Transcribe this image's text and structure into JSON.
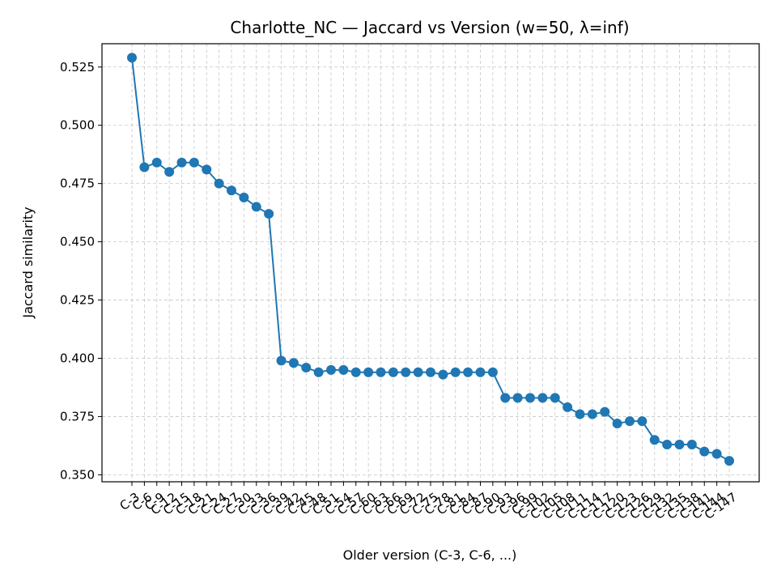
{
  "chart_data": {
    "type": "line",
    "title": "Charlotte_NC — Jaccard vs Version (w=50, λ=inf)",
    "xlabel": "Older version (C-3, C-6, ...)",
    "ylabel": "Jaccard similarity",
    "ylim": [
      0.347,
      0.535
    ],
    "yticks": [
      0.35,
      0.375,
      0.4,
      0.425,
      0.45,
      0.475,
      0.5,
      0.525
    ],
    "ytick_labels": [
      "0.350",
      "0.375",
      "0.400",
      "0.425",
      "0.450",
      "0.475",
      "0.500",
      "0.525"
    ],
    "grid": true,
    "color": "#1f77b4",
    "categories": [
      "C-3",
      "C-6",
      "C-9",
      "C-12",
      "C-15",
      "C-18",
      "C-21",
      "C-24",
      "C-27",
      "C-30",
      "C-33",
      "C-36",
      "C-39",
      "C-42",
      "C-45",
      "C-48",
      "C-51",
      "C-54",
      "C-57",
      "C-60",
      "C-63",
      "C-66",
      "C-69",
      "C-72",
      "C-75",
      "C-78",
      "C-81",
      "C-84",
      "C-87",
      "C-90",
      "C-93",
      "C-96",
      "C-99",
      "C-102",
      "C-105",
      "C-108",
      "C-111",
      "C-114",
      "C-117",
      "C-120",
      "C-123",
      "C-126",
      "C-129",
      "C-132",
      "C-135",
      "C-138",
      "C-141",
      "C-144",
      "C-147"
    ],
    "values": [
      0.529,
      0.482,
      0.484,
      0.48,
      0.484,
      0.484,
      0.481,
      0.475,
      0.472,
      0.469,
      0.465,
      0.462,
      0.399,
      0.398,
      0.396,
      0.394,
      0.395,
      0.395,
      0.394,
      0.394,
      0.394,
      0.394,
      0.394,
      0.394,
      0.394,
      0.393,
      0.394,
      0.394,
      0.394,
      0.394,
      0.383,
      0.383,
      0.383,
      0.383,
      0.383,
      0.379,
      0.376,
      0.376,
      0.377,
      0.372,
      0.373,
      0.373,
      0.365,
      0.363,
      0.363,
      0.363,
      0.36,
      0.359,
      0.356
    ]
  }
}
